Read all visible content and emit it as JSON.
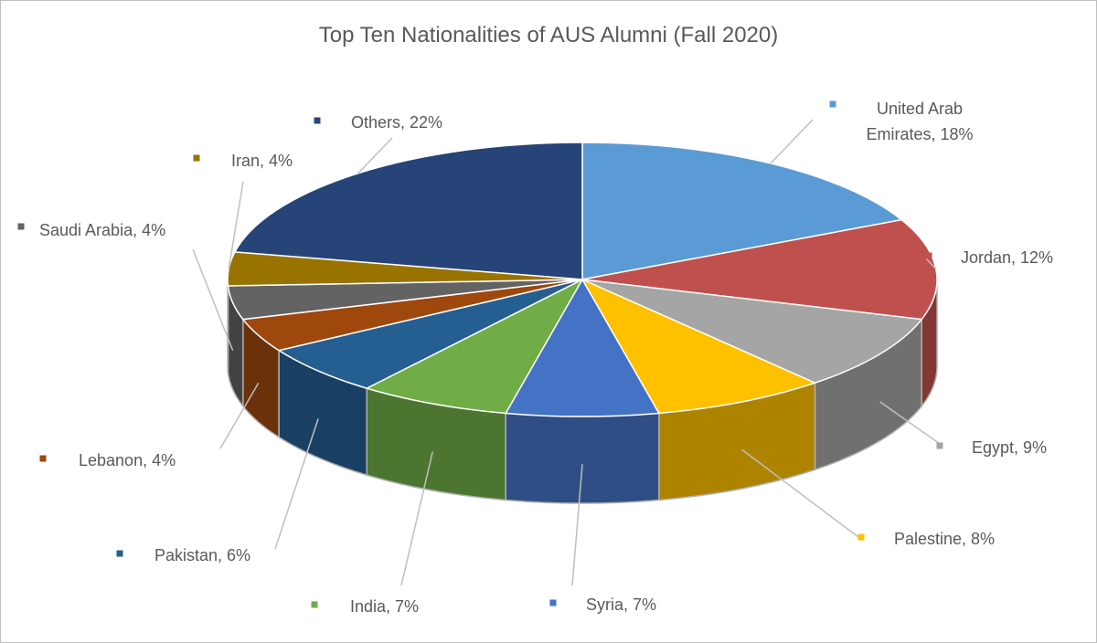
{
  "chart_data": {
    "type": "pie3d",
    "title": "Top Ten Nationalities of AUS Alumni (Fall 2020)",
    "values": [
      18,
      12,
      9,
      8,
      7,
      7,
      6,
      4,
      4,
      4,
      22
    ],
    "value_labels": [
      "United Arab Emirates, 18%",
      "Jordan, 12%",
      "Egypt, 9%",
      "Palestine, 8%",
      "Syria, 7%",
      "India, 7%",
      "Pakistan, 6%",
      "Lebanon, 4%",
      "Saudi Arabia, 4%",
      "Iran, 4%",
      "Others, 22%"
    ],
    "colors": [
      "#5b9bd5",
      "#c0504d",
      "#a5a5a5",
      "#ffc000",
      "#4472c4",
      "#70ad47",
      "#255e91",
      "#9e480e",
      "#636363",
      "#997300",
      "#264478"
    ]
  }
}
